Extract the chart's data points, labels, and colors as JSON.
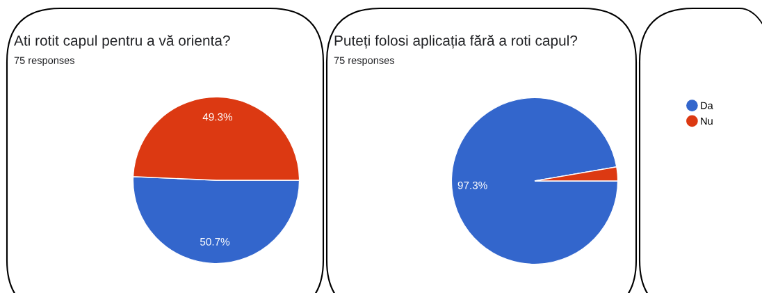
{
  "chart_data": [
    {
      "type": "pie",
      "title": "Ati rotit capul pentru a vă orienta?",
      "subtitle": "75 responses",
      "categories": [
        "Da",
        "Nu"
      ],
      "values": [
        50.7,
        49.3
      ],
      "colors": [
        "#3366cc",
        "#dc3912"
      ],
      "value_labels": [
        "50.7%",
        "49.3%"
      ],
      "legend": "right"
    },
    {
      "type": "pie",
      "title": "Puteți folosi aplicația fără a roti capul?",
      "subtitle": "75 responses",
      "categories": [
        null,
        null
      ],
      "values": [
        97.3,
        2.7
      ],
      "colors": [
        "#3366cc",
        "#dc3912"
      ],
      "value_labels": [
        "97.3%",
        null
      ]
    }
  ]
}
